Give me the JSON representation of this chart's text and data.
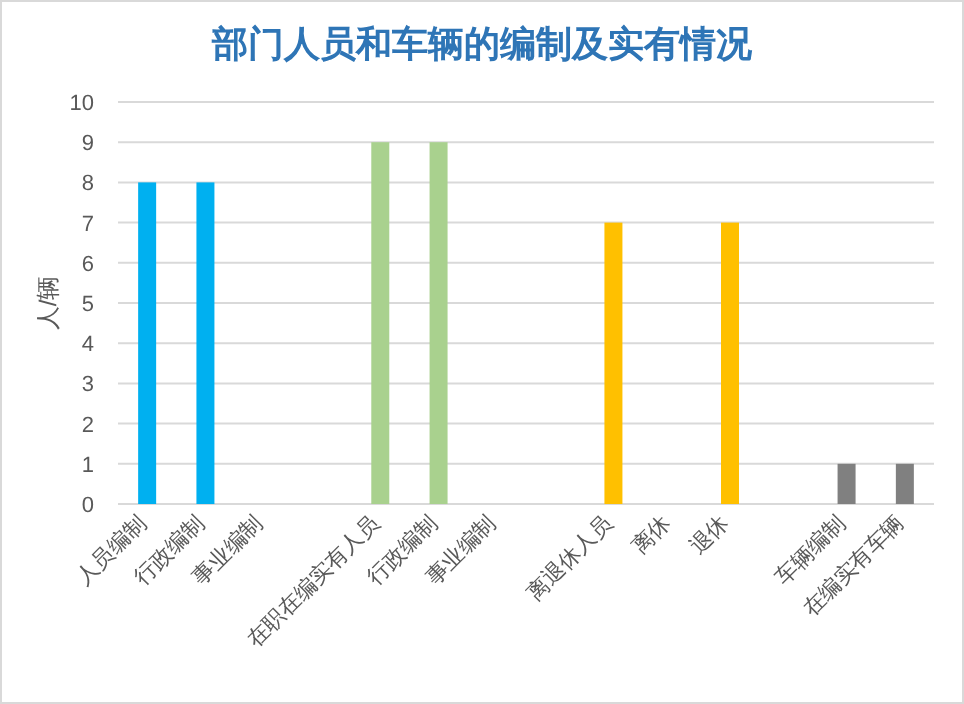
{
  "chart_data": {
    "type": "bar",
    "title": "部门人员和车辆的编制及实有情况",
    "ylabel": "人/辆",
    "categories": [
      "人员编制",
      "行政编制",
      "事业编制",
      null,
      "在职在编实有人员",
      "行政编制",
      "事业编制",
      null,
      "离退休人员",
      "离休",
      "退休",
      null,
      "车辆编制",
      "在编实有车辆"
    ],
    "values": [
      8,
      8,
      null,
      null,
      9,
      9,
      null,
      null,
      7,
      null,
      7,
      null,
      1,
      1
    ],
    "colors": [
      "#00b0f0",
      "#00b0f0",
      null,
      null,
      "#a9d18e",
      "#a9d18e",
      null,
      null,
      "#ffc000",
      null,
      "#ffc000",
      null,
      "#808080",
      "#808080"
    ],
    "ylim": [
      0,
      10
    ],
    "yticks": [
      0,
      1,
      2,
      3,
      4,
      5,
      6,
      7,
      8,
      9,
      10
    ],
    "grid": "y"
  }
}
